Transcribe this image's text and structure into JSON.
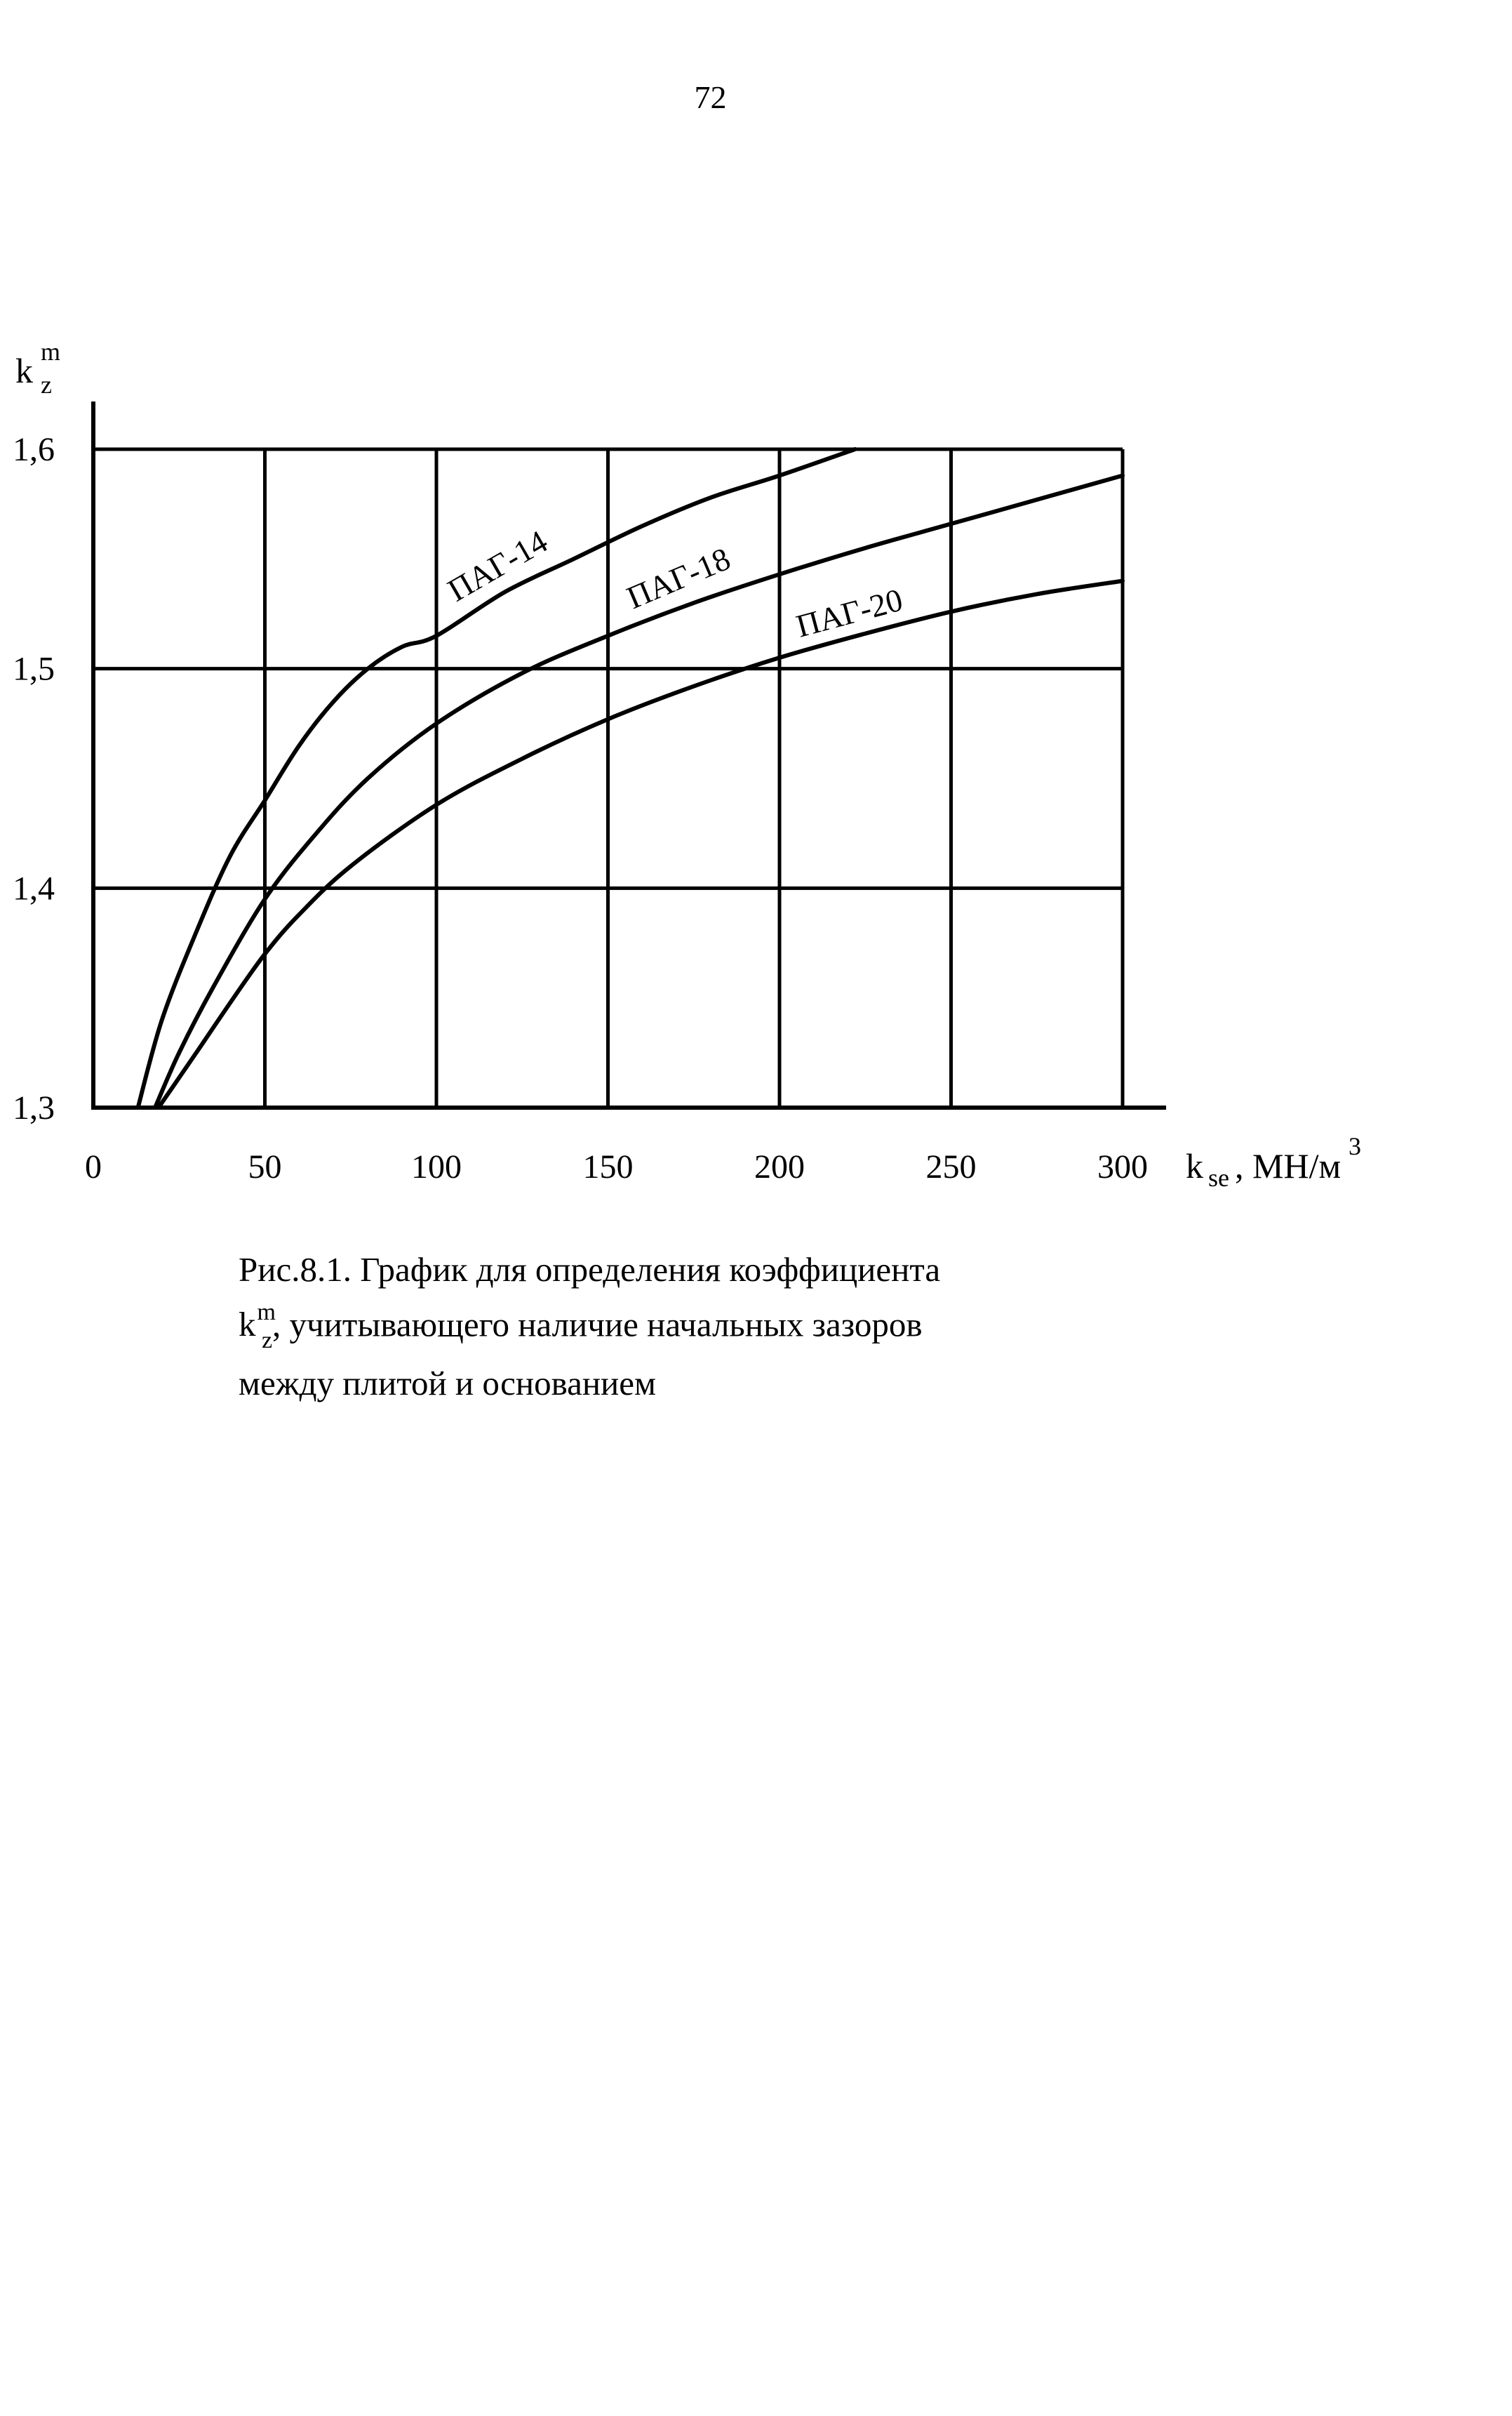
{
  "page_number": "72",
  "caption": {
    "line1": "Рис.8.1. График для определения коэффициента",
    "line2_symbol_base": "k",
    "line2_symbol_sup": "m",
    "line2_symbol_sub": "z",
    "line2_text": ", учитывающего наличие начальных зазоров",
    "line3": "между плитой и основанием"
  },
  "chart_data": {
    "type": "line",
    "title": "",
    "xlabel": {
      "base": "k",
      "subscript": "se",
      "unit": ", МН/м",
      "unit_superscript": "3"
    },
    "ylabel": {
      "base": "k",
      "superscript": "m",
      "subscript": "z"
    },
    "xlim": [
      0,
      300
    ],
    "ylim": [
      1.3,
      1.6
    ],
    "x_ticks": [
      0,
      50,
      100,
      150,
      200,
      250,
      300
    ],
    "x_tick_labels": [
      "0",
      "50",
      "100",
      "150",
      "200",
      "250",
      "300"
    ],
    "y_ticks": [
      1.3,
      1.4,
      1.5,
      1.6
    ],
    "y_tick_labels": [
      "1,3",
      "1,4",
      "1,5",
      "1,6"
    ],
    "grid": true,
    "legend": "none",
    "series": [
      {
        "name": "ПАГ-14",
        "label_rotation_deg": -30,
        "x": [
          13,
          20,
          30,
          40,
          50,
          60,
          70,
          80,
          90,
          100,
          120,
          140,
          160,
          180,
          200,
          222
        ],
        "y": [
          1.3,
          1.34,
          1.38,
          1.415,
          1.44,
          1.465,
          1.485,
          1.5,
          1.51,
          1.515,
          1.535,
          1.55,
          1.565,
          1.578,
          1.588,
          1.6
        ]
      },
      {
        "name": "ПАГ-18",
        "label_rotation_deg": -23,
        "x": [
          18,
          25,
          35,
          50,
          65,
          80,
          100,
          125,
          150,
          175,
          200,
          225,
          250,
          275,
          300
        ],
        "y": [
          1.3,
          1.325,
          1.355,
          1.395,
          1.425,
          1.45,
          1.475,
          1.498,
          1.515,
          1.53,
          1.543,
          1.555,
          1.566,
          1.577,
          1.588
        ]
      },
      {
        "name": "ПАГ-20",
        "label_rotation_deg": -15,
        "x": [
          19,
          30,
          40,
          50,
          60,
          75,
          100,
          125,
          150,
          175,
          200,
          225,
          250,
          275,
          300
        ],
        "y": [
          1.3,
          1.325,
          1.348,
          1.37,
          1.388,
          1.41,
          1.438,
          1.459,
          1.477,
          1.492,
          1.505,
          1.516,
          1.526,
          1.534,
          1.54
        ]
      }
    ]
  }
}
